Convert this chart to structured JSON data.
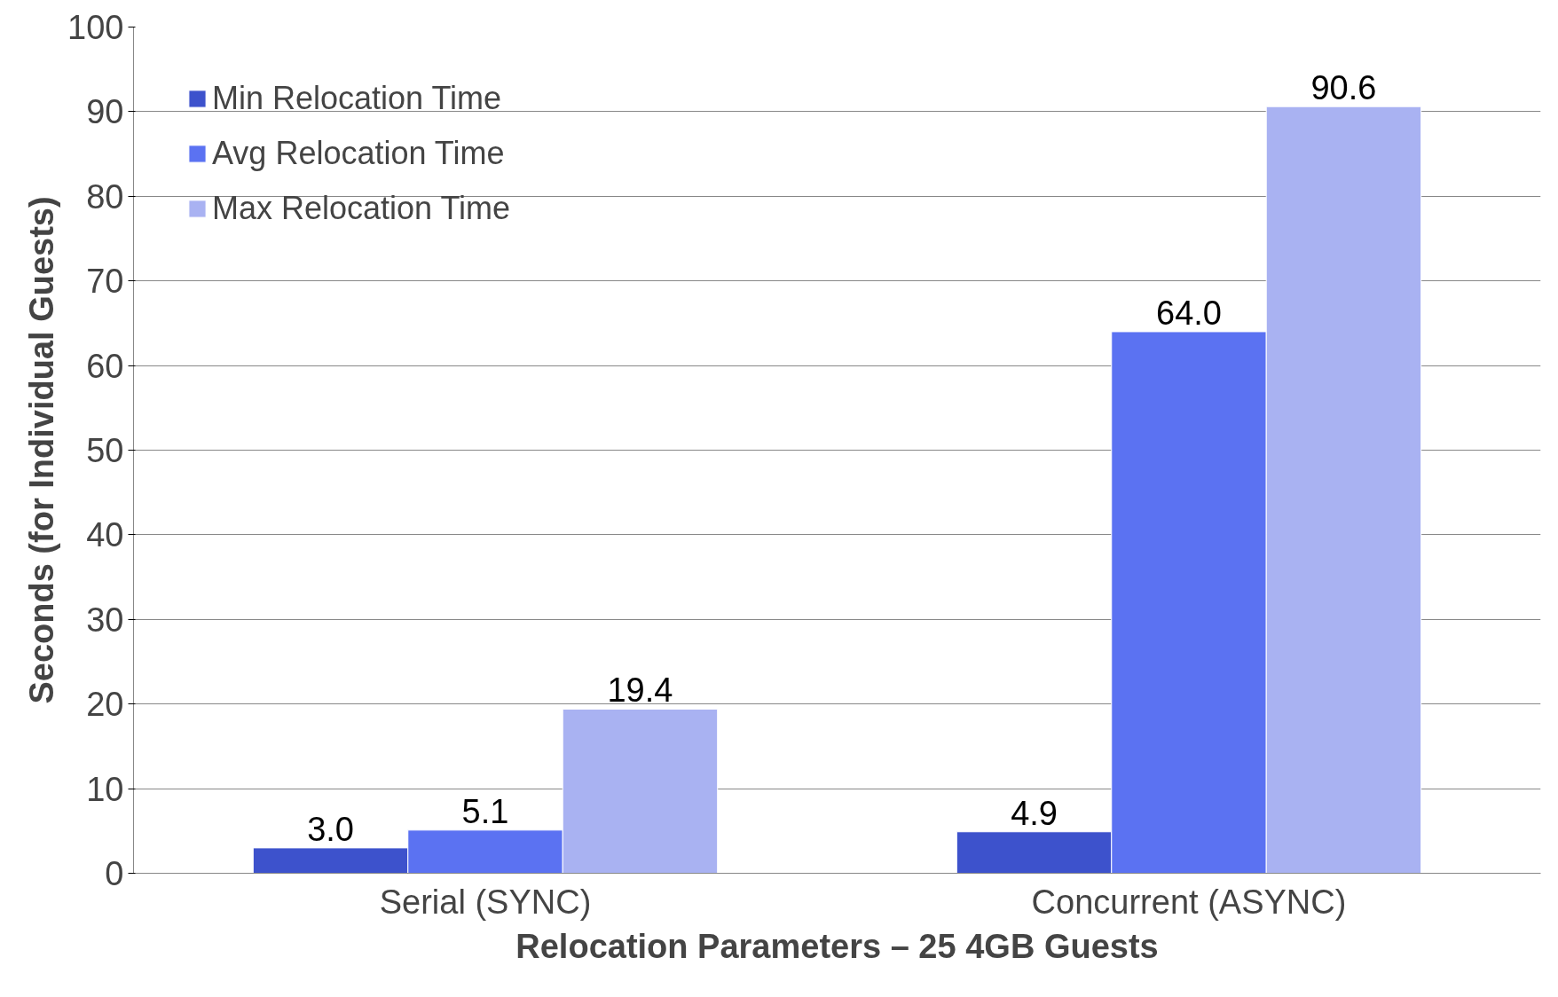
{
  "chart_data": {
    "type": "bar",
    "xlabel": "Relocation Parameters – 25 4GB Guests",
    "ylabel": "Seconds (for Individual Guests)",
    "categories": [
      "Serial (SYNC)",
      "Concurrent (ASYNC)"
    ],
    "series": [
      {
        "name": "Min Relocation Time",
        "color": "#3d52cc",
        "values": [
          3.0,
          4.9
        ],
        "value_labels": [
          "3.0",
          "4.9"
        ]
      },
      {
        "name": "Avg Relocation Time",
        "color": "#5b72f2",
        "values": [
          5.1,
          64.0
        ],
        "value_labels": [
          "5.1",
          "64.0"
        ]
      },
      {
        "name": "Max Relocation Time",
        "color": "#a9b2f2",
        "values": [
          19.4,
          90.6
        ],
        "value_labels": [
          "19.4",
          "90.6"
        ]
      }
    ],
    "ylim": [
      0,
      100
    ],
    "yticks": [
      0,
      10,
      20,
      30,
      40,
      50,
      60,
      70,
      80,
      90,
      100
    ],
    "grid": "y",
    "legend": "top left"
  }
}
